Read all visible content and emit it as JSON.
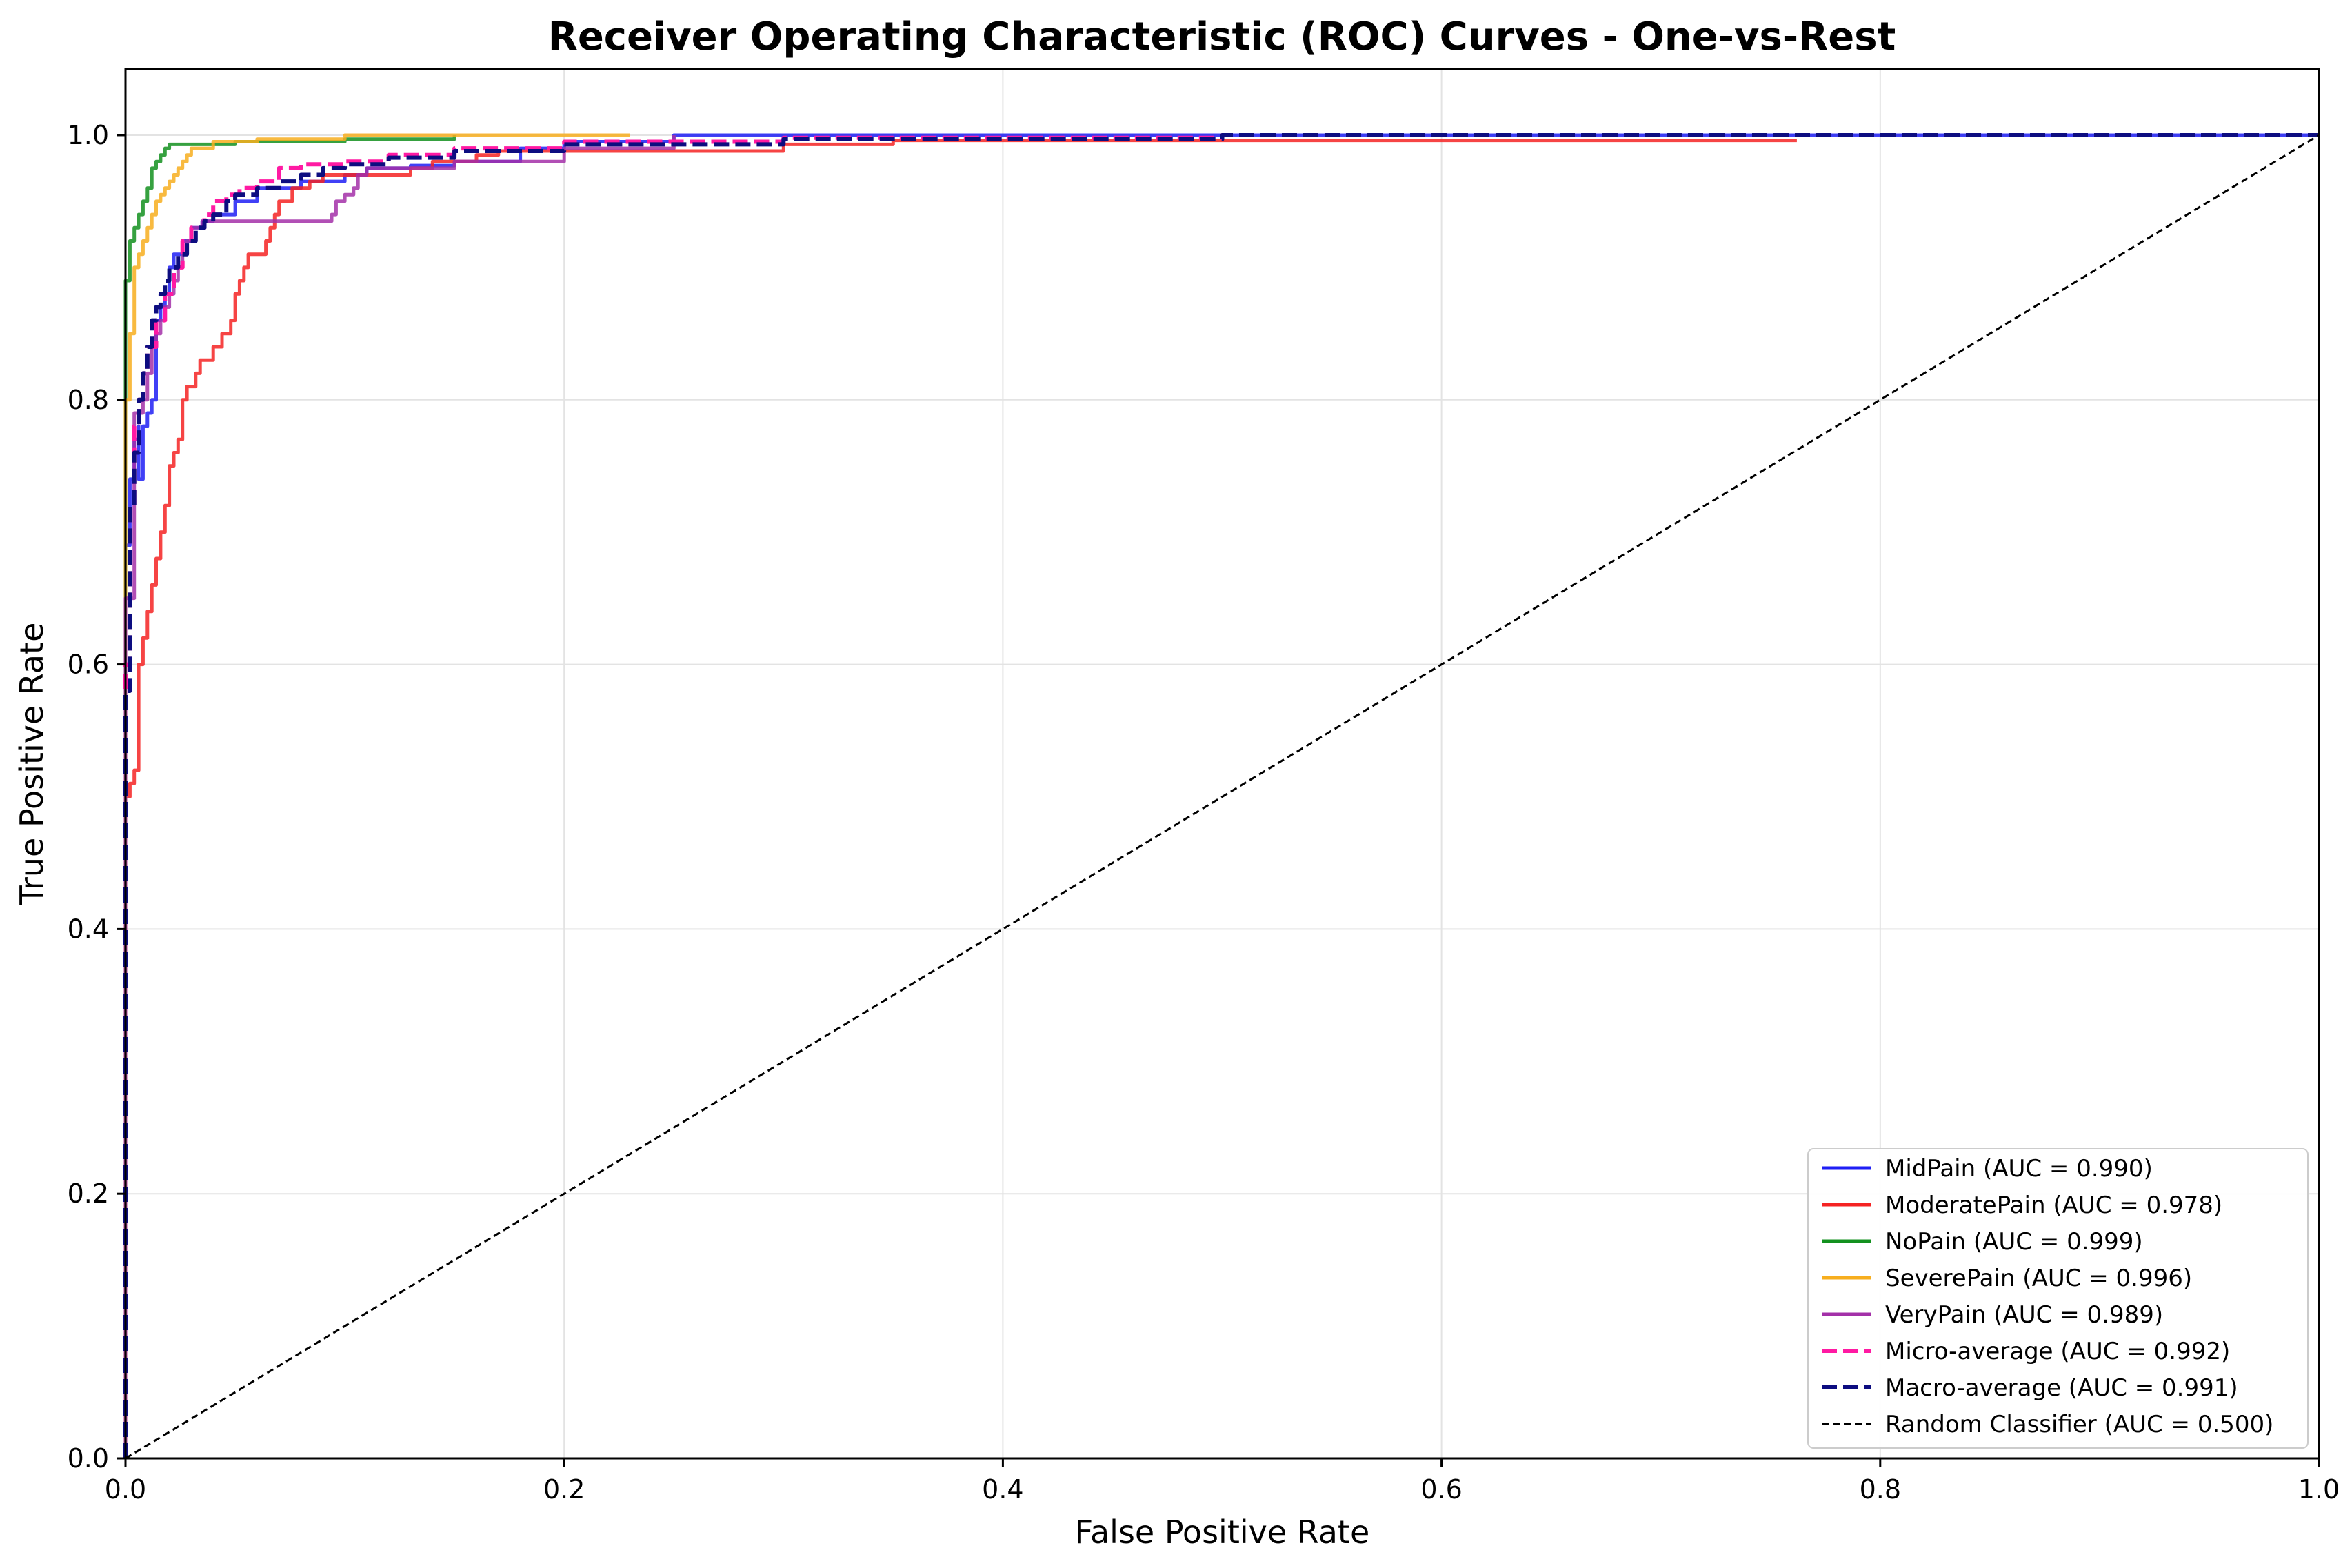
{
  "chart_data": {
    "type": "line",
    "title": "Receiver Operating Characteristic (ROC) Curves - One-vs-Rest",
    "xlabel": "False Positive Rate",
    "ylabel": "True Positive Rate",
    "xlim": [
      0.0,
      1.0
    ],
    "ylim": [
      0.0,
      1.05
    ],
    "x_ticks": [
      "0.0",
      "0.2",
      "0.4",
      "0.6",
      "0.8",
      "1.0"
    ],
    "y_ticks": [
      "0.0",
      "0.2",
      "0.4",
      "0.6",
      "0.8",
      "1.0"
    ],
    "grid": true,
    "legend_position": "lower-right",
    "series": [
      {
        "name": "MidPain (AUC = 0.990)",
        "color": "#1f1ff5",
        "dash": "solid",
        "x": [
          0.0,
          0.0,
          0.002,
          0.004,
          0.006,
          0.006,
          0.008,
          0.008,
          0.01,
          0.012,
          0.014,
          0.014,
          0.016,
          0.018,
          0.02,
          0.022,
          0.024,
          0.026,
          0.03,
          0.035,
          0.04,
          0.05,
          0.06,
          0.08,
          0.1,
          0.11,
          0.13,
          0.15,
          0.18,
          0.2,
          0.25,
          1.0
        ],
        "y": [
          0.0,
          0.69,
          0.74,
          0.77,
          0.78,
          0.74,
          0.74,
          0.78,
          0.79,
          0.8,
          0.84,
          0.86,
          0.87,
          0.88,
          0.9,
          0.91,
          0.91,
          0.92,
          0.93,
          0.935,
          0.94,
          0.95,
          0.96,
          0.965,
          0.97,
          0.975,
          0.977,
          0.98,
          0.99,
          0.995,
          1.0,
          1.0
        ]
      },
      {
        "name": "ModeratePain (AUC = 0.978)",
        "color": "#f52323",
        "dash": "solid",
        "x": [
          0.0,
          0.0,
          0.002,
          0.004,
          0.006,
          0.008,
          0.01,
          0.012,
          0.014,
          0.016,
          0.018,
          0.02,
          0.022,
          0.024,
          0.026,
          0.028,
          0.03,
          0.032,
          0.034,
          0.036,
          0.04,
          0.044,
          0.048,
          0.05,
          0.052,
          0.054,
          0.056,
          0.058,
          0.06,
          0.064,
          0.066,
          0.068,
          0.07,
          0.076,
          0.08,
          0.084,
          0.09,
          0.094,
          0.1,
          0.11,
          0.12,
          0.13,
          0.14,
          0.15,
          0.16,
          0.17,
          0.18,
          0.2,
          0.25,
          0.3,
          0.35,
          0.4,
          0.5,
          0.6,
          0.7,
          0.762
        ],
        "y": [
          0.0,
          0.5,
          0.51,
          0.52,
          0.6,
          0.62,
          0.64,
          0.66,
          0.68,
          0.7,
          0.72,
          0.75,
          0.76,
          0.77,
          0.8,
          0.81,
          0.81,
          0.82,
          0.83,
          0.83,
          0.84,
          0.85,
          0.86,
          0.88,
          0.89,
          0.9,
          0.91,
          0.91,
          0.91,
          0.92,
          0.93,
          0.94,
          0.95,
          0.96,
          0.96,
          0.965,
          0.97,
          0.97,
          0.97,
          0.97,
          0.97,
          0.975,
          0.98,
          0.98,
          0.985,
          0.988,
          0.988,
          0.988,
          0.988,
          0.993,
          0.996,
          0.996,
          0.996,
          0.996,
          0.996,
          0.996
        ]
      },
      {
        "name": "NoPain (AUC = 0.999)",
        "color": "#13911f",
        "dash": "solid",
        "x": [
          0.0,
          0.0,
          0.002,
          0.004,
          0.006,
          0.008,
          0.01,
          0.012,
          0.014,
          0.016,
          0.018,
          0.02,
          0.03,
          0.05,
          0.1,
          0.15
        ],
        "y": [
          0.0,
          0.89,
          0.92,
          0.93,
          0.94,
          0.95,
          0.96,
          0.975,
          0.98,
          0.985,
          0.99,
          0.993,
          0.993,
          0.995,
          0.997,
          1.0
        ]
      },
      {
        "name": "SeverePain (AUC = 0.996)",
        "color": "#f7ae1e",
        "dash": "solid",
        "x": [
          0.0,
          0.0,
          0.002,
          0.004,
          0.006,
          0.008,
          0.01,
          0.012,
          0.014,
          0.016,
          0.018,
          0.02,
          0.022,
          0.024,
          0.026,
          0.028,
          0.03,
          0.04,
          0.06,
          0.1,
          0.15,
          0.23
        ],
        "y": [
          0.0,
          0.8,
          0.85,
          0.9,
          0.91,
          0.92,
          0.93,
          0.94,
          0.95,
          0.955,
          0.96,
          0.965,
          0.97,
          0.975,
          0.98,
          0.985,
          0.99,
          0.995,
          0.997,
          1.0,
          1.0,
          1.0
        ]
      },
      {
        "name": "VeryPain (AUC = 0.989)",
        "color": "#a330a8",
        "dash": "solid",
        "x": [
          0.0,
          0.0,
          0.004,
          0.008,
          0.01,
          0.012,
          0.014,
          0.016,
          0.018,
          0.02,
          0.022,
          0.024,
          0.026,
          0.028,
          0.03,
          0.035,
          0.04,
          0.06,
          0.08,
          0.09,
          0.094,
          0.096,
          0.1,
          0.104,
          0.106,
          0.11,
          0.15,
          0.2,
          0.25
        ],
        "y": [
          0.0,
          0.65,
          0.79,
          0.8,
          0.82,
          0.84,
          0.85,
          0.86,
          0.87,
          0.88,
          0.89,
          0.9,
          0.91,
          0.92,
          0.93,
          0.935,
          0.935,
          0.935,
          0.935,
          0.935,
          0.94,
          0.95,
          0.955,
          0.96,
          0.97,
          0.975,
          0.98,
          0.99,
          1.0
        ]
      },
      {
        "name": "Micro-average (AUC = 0.992)",
        "color": "#ff1aa3",
        "dash": "dashed",
        "x": [
          0.0,
          0.0,
          0.002,
          0.004,
          0.006,
          0.008,
          0.01,
          0.014,
          0.018,
          0.022,
          0.026,
          0.03,
          0.036,
          0.04,
          0.046,
          0.052,
          0.06,
          0.07,
          0.08,
          0.1,
          0.12,
          0.15,
          0.2,
          0.3,
          0.5,
          1.0
        ],
        "y": [
          0.0,
          0.6,
          0.72,
          0.78,
          0.8,
          0.82,
          0.84,
          0.86,
          0.88,
          0.9,
          0.92,
          0.93,
          0.94,
          0.95,
          0.955,
          0.96,
          0.965,
          0.975,
          0.978,
          0.98,
          0.985,
          0.99,
          0.995,
          0.998,
          1.0,
          1.0
        ]
      },
      {
        "name": "Macro-average (AUC = 0.991)",
        "color": "#0d0d80",
        "dash": "dashed",
        "x": [
          0.0,
          0.0,
          0.002,
          0.004,
          0.006,
          0.008,
          0.01,
          0.012,
          0.014,
          0.016,
          0.018,
          0.02,
          0.024,
          0.028,
          0.032,
          0.036,
          0.04,
          0.046,
          0.05,
          0.06,
          0.07,
          0.08,
          0.09,
          0.1,
          0.12,
          0.15,
          0.2,
          0.3,
          0.5,
          1.0
        ],
        "y": [
          0.0,
          0.58,
          0.72,
          0.76,
          0.8,
          0.82,
          0.84,
          0.86,
          0.87,
          0.88,
          0.89,
          0.9,
          0.91,
          0.92,
          0.93,
          0.935,
          0.94,
          0.95,
          0.955,
          0.96,
          0.965,
          0.97,
          0.975,
          0.978,
          0.983,
          0.988,
          0.993,
          0.997,
          1.0,
          1.0
        ]
      },
      {
        "name": "Random Classifier (AUC = 0.500)",
        "color": "#000000",
        "dash": "dotted-thin",
        "x": [
          0.0,
          1.0
        ],
        "y": [
          0.0,
          1.0
        ]
      }
    ]
  }
}
